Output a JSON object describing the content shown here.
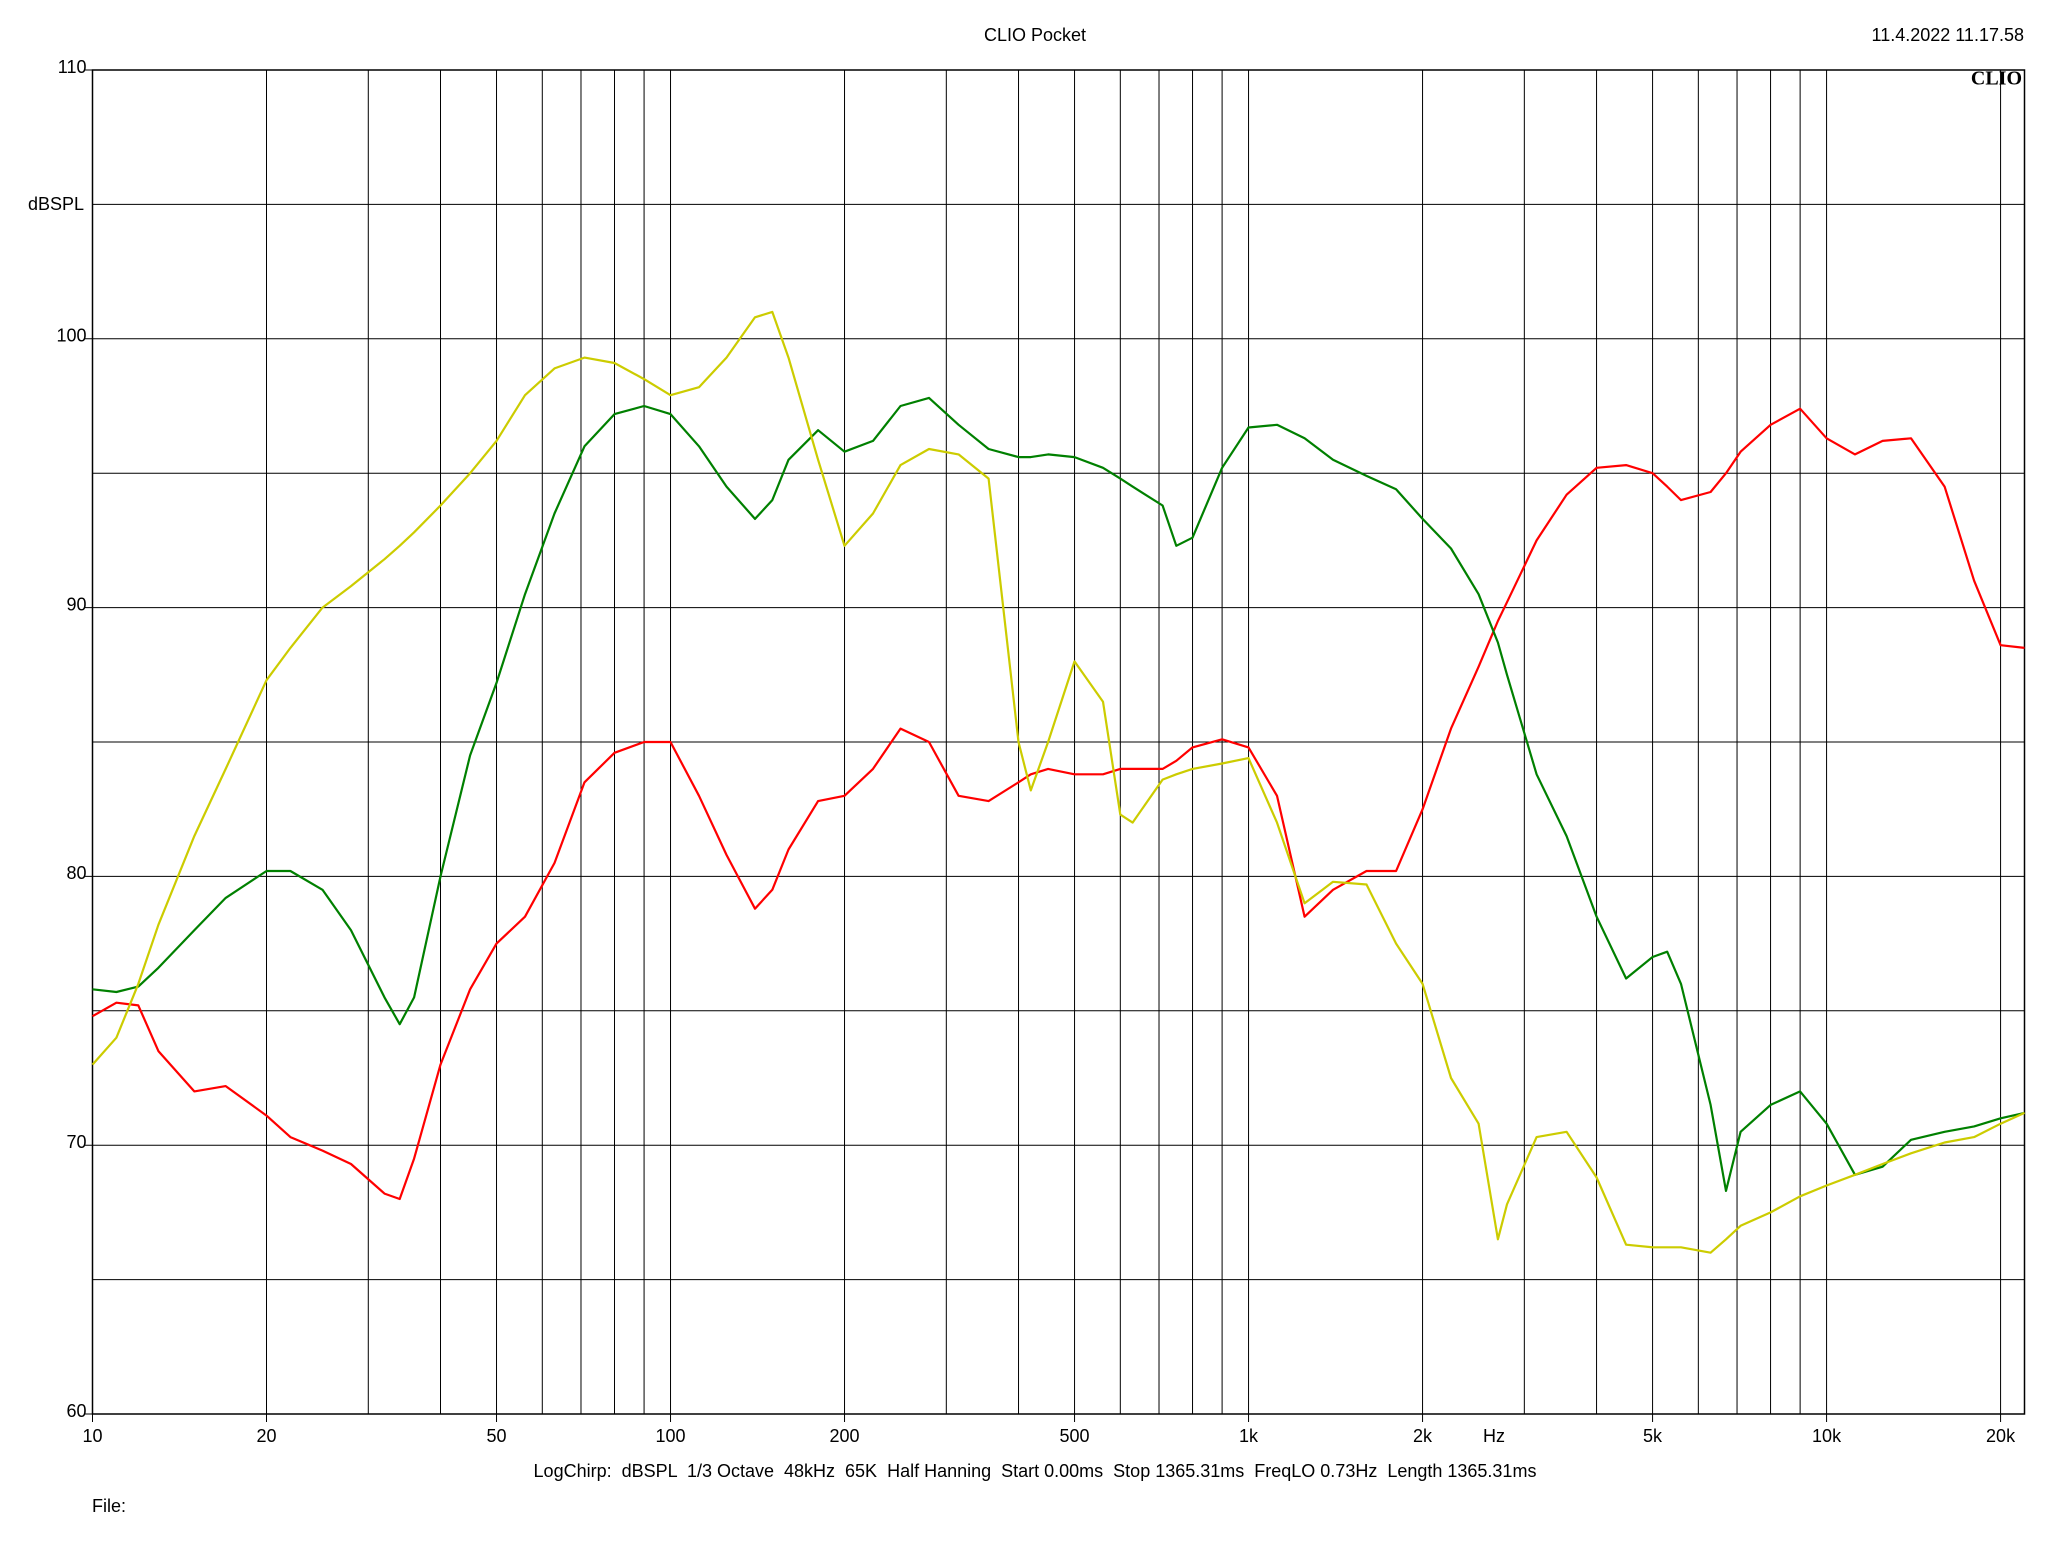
{
  "chart_data": {
    "type": "line",
    "title": "CLIO Pocket",
    "timestamp": "11.4.2022 11.17.58",
    "logo": "CLIO",
    "y_label": "dBSPL",
    "x_label": "Hz",
    "footer": "LogChirp:  dBSPL  1/3 Octave  48kHz  65K  Half Hanning  Start 0.00ms  Stop 1365.31ms  FreqLO 0.73Hz  Length 1365.31ms",
    "file_label": "File:",
    "x_log": true,
    "grid": true,
    "xlim": [
      10,
      22000
    ],
    "ylim": [
      60,
      110
    ],
    "xticks": [
      10,
      20,
      50,
      100,
      200,
      500,
      {
        "value": 1000,
        "label": "1k"
      },
      {
        "value": 2000,
        "label": "2k"
      },
      {
        "value": 5000,
        "label": "5k"
      },
      {
        "value": 10000,
        "label": "10k"
      },
      {
        "value": 20000,
        "label": "20k"
      }
    ],
    "xgrid": [
      20,
      30,
      40,
      50,
      60,
      70,
      80,
      90,
      100,
      200,
      300,
      400,
      500,
      600,
      700,
      800,
      900,
      1000,
      2000,
      3000,
      4000,
      5000,
      6000,
      7000,
      8000,
      9000,
      10000,
      20000
    ],
    "yticks": [
      60,
      70,
      80,
      90,
      100,
      110
    ],
    "ygrid": [
      65,
      75,
      85,
      95,
      105
    ],
    "x": [
      10,
      11,
      12,
      13,
      15,
      17,
      20,
      22,
      25,
      28,
      32,
      34,
      36,
      40,
      45,
      50,
      56,
      63,
      71,
      80,
      90,
      100,
      112,
      125,
      140,
      150,
      160,
      180,
      200,
      224,
      250,
      280,
      315,
      355,
      400,
      420,
      450,
      500,
      560,
      600,
      630,
      710,
      750,
      800,
      900,
      1000,
      1120,
      1250,
      1400,
      1600,
      1800,
      2000,
      2240,
      2500,
      2700,
      2800,
      3150,
      3550,
      4000,
      4500,
      5000,
      5300,
      5600,
      6300,
      6700,
      7100,
      8000,
      9000,
      10000,
      11200,
      12500,
      14000,
      16000,
      18000,
      20000,
      22000
    ],
    "series": [
      {
        "color": "#ff0000",
        "values": [
          74.8,
          75.3,
          75.2,
          73.5,
          72.0,
          72.2,
          71.1,
          70.3,
          69.8,
          69.3,
          68.2,
          68.0,
          69.5,
          73.0,
          75.8,
          77.5,
          78.5,
          80.5,
          83.5,
          84.6,
          85.0,
          85.0,
          83.0,
          80.8,
          78.8,
          79.5,
          81.0,
          82.8,
          83.0,
          84.0,
          85.5,
          85.0,
          83.0,
          82.8,
          83.5,
          83.8,
          84.0,
          83.8,
          83.8,
          84.0,
          84.0,
          84.0,
          84.3,
          84.8,
          85.1,
          84.8,
          83.0,
          78.5,
          79.5,
          80.2,
          80.2,
          82.5,
          85.5,
          87.8,
          89.5,
          90.2,
          92.5,
          94.2,
          95.2,
          95.3,
          95.0,
          94.5,
          94.0,
          94.3,
          95.0,
          95.8,
          96.8,
          97.4,
          96.3,
          95.7,
          96.2,
          96.3,
          94.5,
          91.0,
          88.6,
          88.5
        ]
      },
      {
        "color": "#008000",
        "values": [
          75.8,
          75.7,
          75.9,
          76.6,
          78.0,
          79.2,
          80.2,
          80.2,
          79.5,
          78.0,
          75.5,
          74.5,
          75.5,
          80.0,
          84.5,
          87.2,
          90.5,
          93.5,
          96.0,
          97.2,
          97.5,
          97.2,
          96.0,
          94.5,
          93.3,
          94.0,
          95.5,
          96.6,
          95.8,
          96.2,
          97.5,
          97.8,
          96.8,
          95.9,
          95.6,
          95.6,
          95.7,
          95.6,
          95.2,
          94.8,
          94.5,
          93.8,
          92.3,
          92.6,
          95.2,
          96.7,
          96.8,
          96.3,
          95.5,
          94.9,
          94.4,
          93.3,
          92.2,
          90.5,
          88.7,
          87.5,
          83.8,
          81.5,
          78.5,
          76.2,
          77.0,
          77.2,
          76.0,
          71.5,
          68.3,
          70.5,
          71.5,
          72.0,
          70.8,
          68.9,
          69.2,
          70.2,
          70.5,
          70.7,
          71.0,
          71.2
        ]
      },
      {
        "color": "#cccc00",
        "values": [
          73.0,
          74.0,
          76.0,
          78.2,
          81.5,
          84.0,
          87.3,
          88.5,
          90.0,
          90.8,
          91.8,
          92.3,
          92.8,
          93.8,
          95.0,
          96.2,
          97.9,
          98.9,
          99.3,
          99.1,
          98.5,
          97.9,
          98.2,
          99.3,
          100.8,
          101.0,
          99.3,
          95.5,
          92.3,
          93.5,
          95.3,
          95.9,
          95.7,
          94.8,
          85.0,
          83.2,
          85.0,
          88.0,
          86.5,
          82.3,
          82.0,
          83.6,
          83.8,
          84.0,
          84.2,
          84.4,
          82.0,
          79.0,
          79.8,
          79.7,
          77.5,
          76.0,
          72.5,
          70.8,
          66.5,
          67.8,
          70.3,
          70.5,
          68.8,
          66.3,
          66.2,
          66.2,
          66.2,
          66.0,
          66.5,
          67.0,
          67.5,
          68.1,
          68.5,
          68.9,
          69.3,
          69.7,
          70.1,
          70.3,
          70.8,
          71.2
        ]
      }
    ]
  }
}
